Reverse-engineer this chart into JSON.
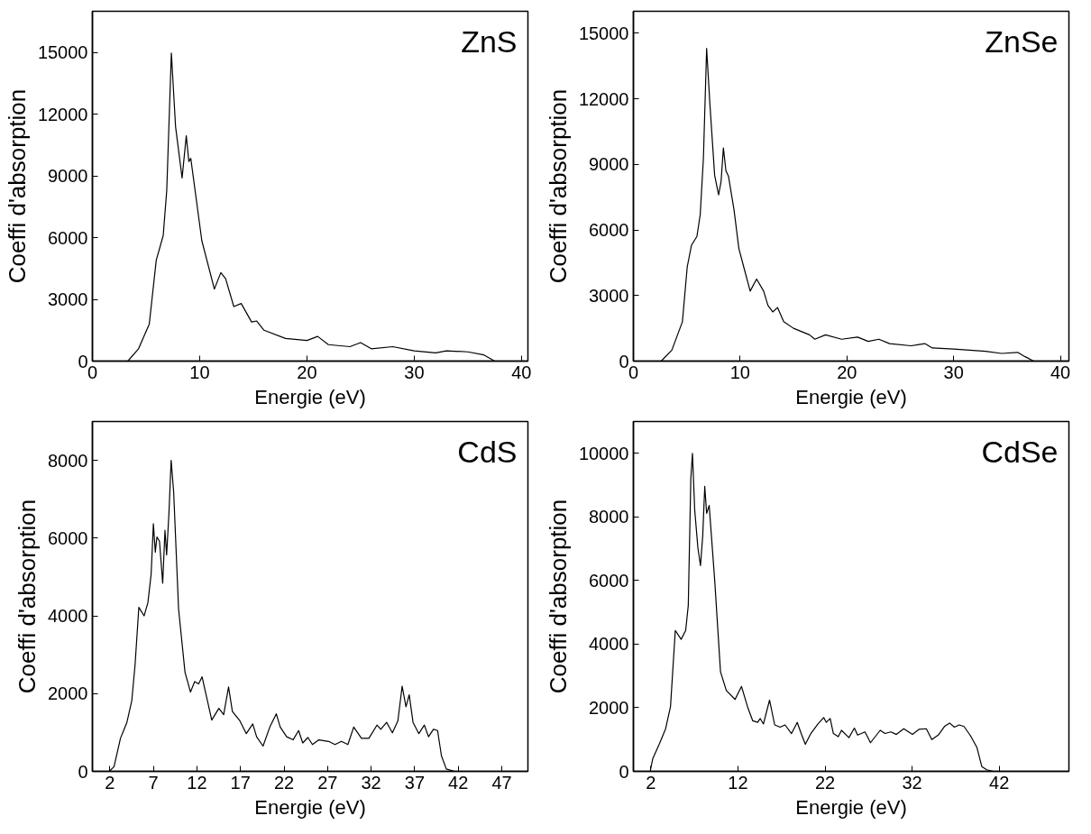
{
  "chart_data": [
    {
      "type": "line",
      "xlabel": "Energie (eV)",
      "ylabel": "Coeffi d'absorption",
      "annotations": [
        "ZnS"
      ],
      "color": "#000000",
      "grid": false,
      "xlim": [
        0,
        40.6
      ],
      "ylim": [
        0,
        17000
      ],
      "xticks": [
        0,
        10,
        20,
        30,
        40
      ],
      "yticks": [
        0,
        3000,
        6000,
        9000,
        12000,
        15000
      ],
      "x": [
        3.3,
        4.3,
        5.3,
        5.95,
        6.6,
        6.93,
        7.36,
        7.75,
        8.36,
        8.75,
        8.99,
        9.17,
        10.2,
        11.37,
        11.97,
        12.42,
        13.18,
        13.87,
        14.84,
        15.3,
        16,
        18,
        20,
        21,
        22,
        24,
        25,
        26,
        28,
        30,
        32,
        33,
        35,
        36.5,
        37.5
      ],
      "values": [
        0,
        600,
        1800,
        4900,
        6100,
        8300,
        14970,
        11400,
        8900,
        10950,
        9700,
        9850,
        5850,
        3500,
        4300,
        4000,
        2650,
        2800,
        1900,
        1950,
        1500,
        1100,
        1000,
        1200,
        800,
        700,
        900,
        600,
        700,
        500,
        400,
        500,
        450,
        300,
        0
      ]
    },
    {
      "type": "line",
      "xlabel": "Energie (eV)",
      "ylabel": "Coeffi d'absorption",
      "annotations": [
        "ZnSe"
      ],
      "color": "#000000",
      "grid": false,
      "xlim": [
        0,
        40.8
      ],
      "ylim": [
        0,
        16000
      ],
      "xticks": [
        0,
        10,
        20,
        30,
        40
      ],
      "yticks": [
        0,
        3000,
        6000,
        9000,
        12000,
        15000
      ],
      "x": [
        2.6,
        3.6,
        4.59,
        5.04,
        5.44,
        5.95,
        6.26,
        6.56,
        6.86,
        7.16,
        7.61,
        7.98,
        8.21,
        8.43,
        8.67,
        8.91,
        9.43,
        9.88,
        10.34,
        10.94,
        11.54,
        12.2,
        12.6,
        13.05,
        13.5,
        14.08,
        15,
        16.5,
        17,
        18,
        19.5,
        21,
        22,
        23,
        24,
        26,
        27.3,
        28,
        30,
        31.5,
        33,
        34.5,
        36,
        36.7,
        37.5
      ],
      "values": [
        0,
        500,
        1800,
        4300,
        5300,
        5700,
        6700,
        9300,
        14300,
        11800,
        8500,
        7600,
        8200,
        9750,
        8700,
        8450,
        6900,
        5150,
        4300,
        3200,
        3750,
        3200,
        2550,
        2250,
        2450,
        1800,
        1500,
        1200,
        1000,
        1200,
        1000,
        1100,
        900,
        1000,
        800,
        700,
        800,
        600,
        550,
        500,
        450,
        350,
        400,
        200,
        0
      ]
    },
    {
      "type": "line",
      "xlabel": "Energie (eV)",
      "ylabel": "Coeffi d'absorption",
      "annotations": [
        "CdS"
      ],
      "color": "#000000",
      "grid": false,
      "xlim": [
        0,
        50
      ],
      "ylim": [
        0,
        9000
      ],
      "xticks": [
        2,
        7,
        12,
        17,
        22,
        27,
        32,
        37,
        42,
        47
      ],
      "yticks": [
        0,
        2000,
        4000,
        6000,
        8000
      ],
      "x": [
        1.93,
        2.48,
        3.22,
        3.96,
        4.52,
        4.89,
        5.33,
        5.93,
        6.37,
        6.74,
        7.0,
        7.22,
        7.41,
        7.7,
        8.07,
        8.33,
        8.52,
        8.78,
        9.04,
        9.33,
        9.89,
        10.63,
        11.26,
        11.74,
        12.19,
        12.59,
        13.11,
        13.7,
        14.52,
        15.07,
        15.63,
        16.07,
        16.93,
        17.67,
        18.41,
        18.85,
        19.59,
        20.37,
        21.11,
        21.56,
        22.3,
        23.04,
        23.67,
        24.15,
        24.74,
        25.26,
        26.0,
        27.11,
        27.85,
        28.59,
        29.33,
        30.0,
        30.89,
        31.74,
        32.67,
        33.11,
        33.78,
        34.44,
        35.07,
        35.56,
        36.0,
        36.37,
        36.81,
        37.48,
        38.11,
        38.59,
        39.15,
        39.63,
        40.07,
        40.63,
        41.56
      ],
      "values": [
        0,
        120,
        850,
        1260,
        1820,
        2720,
        4220,
        4000,
        4340,
        5070,
        6370,
        5640,
        6030,
        5920,
        4840,
        6200,
        5570,
        6610,
        8000,
        7180,
        4180,
        2550,
        2040,
        2310,
        2250,
        2430,
        1910,
        1320,
        1620,
        1460,
        2170,
        1540,
        1300,
        970,
        1220,
        890,
        650,
        1140,
        1480,
        1140,
        890,
        810,
        1050,
        730,
        870,
        690,
        810,
        770,
        690,
        770,
        690,
        1140,
        850,
        850,
        1190,
        1080,
        1260,
        990,
        1300,
        2190,
        1660,
        1970,
        1260,
        970,
        1190,
        890,
        1080,
        1050,
        400,
        60,
        0
      ]
    },
    {
      "type": "line",
      "xlabel": "Energie (eV)",
      "ylabel": "Coeffi d'absorption",
      "annotations": [
        "CdSe"
      ],
      "color": "#000000",
      "grid": false,
      "xlim": [
        0,
        50
      ],
      "ylim": [
        0,
        11000
      ],
      "xticks": [
        2,
        12,
        22,
        32,
        42
      ],
      "yticks": [
        0,
        2000,
        4000,
        6000,
        8000,
        10000
      ],
      "x": [
        1.93,
        2.22,
        2.96,
        3.7,
        4.26,
        4.81,
        5.48,
        6.0,
        6.3,
        6.59,
        6.78,
        7.04,
        7.41,
        7.7,
        7.96,
        8.19,
        8.41,
        8.7,
        9.33,
        10.0,
        10.67,
        11.67,
        12.41,
        13.15,
        13.7,
        14.26,
        14.56,
        14.93,
        15.63,
        16.22,
        16.85,
        17.41,
        18.15,
        18.81,
        19.26,
        19.74,
        20.37,
        21.19,
        21.85,
        22.15,
        22.59,
        22.96,
        23.52,
        23.89,
        24.74,
        25.37,
        25.74,
        26.59,
        27.22,
        28.33,
        28.89,
        29.56,
        30.19,
        31.04,
        32.04,
        32.78,
        33.63,
        34.26,
        35.0,
        35.74,
        36.3,
        36.85,
        37.41,
        37.96,
        38.7,
        39.44,
        40.0,
        40.56,
        41.3
      ],
      "values": [
        0,
        400,
        850,
        1340,
        2040,
        4430,
        4150,
        4430,
        5220,
        9200,
        10000,
        8210,
        7010,
        6470,
        7410,
        8960,
        8110,
        8360,
        6020,
        3130,
        2540,
        2260,
        2670,
        1990,
        1590,
        1540,
        1660,
        1490,
        2240,
        1460,
        1390,
        1460,
        1190,
        1540,
        1190,
        850,
        1190,
        1490,
        1690,
        1540,
        1660,
        1190,
        1090,
        1290,
        1060,
        1360,
        1140,
        1240,
        900,
        1290,
        1190,
        1240,
        1160,
        1340,
        1160,
        1320,
        1340,
        1000,
        1140,
        1420,
        1520,
        1390,
        1460,
        1410,
        1120,
        750,
        150,
        50,
        0
      ]
    }
  ]
}
